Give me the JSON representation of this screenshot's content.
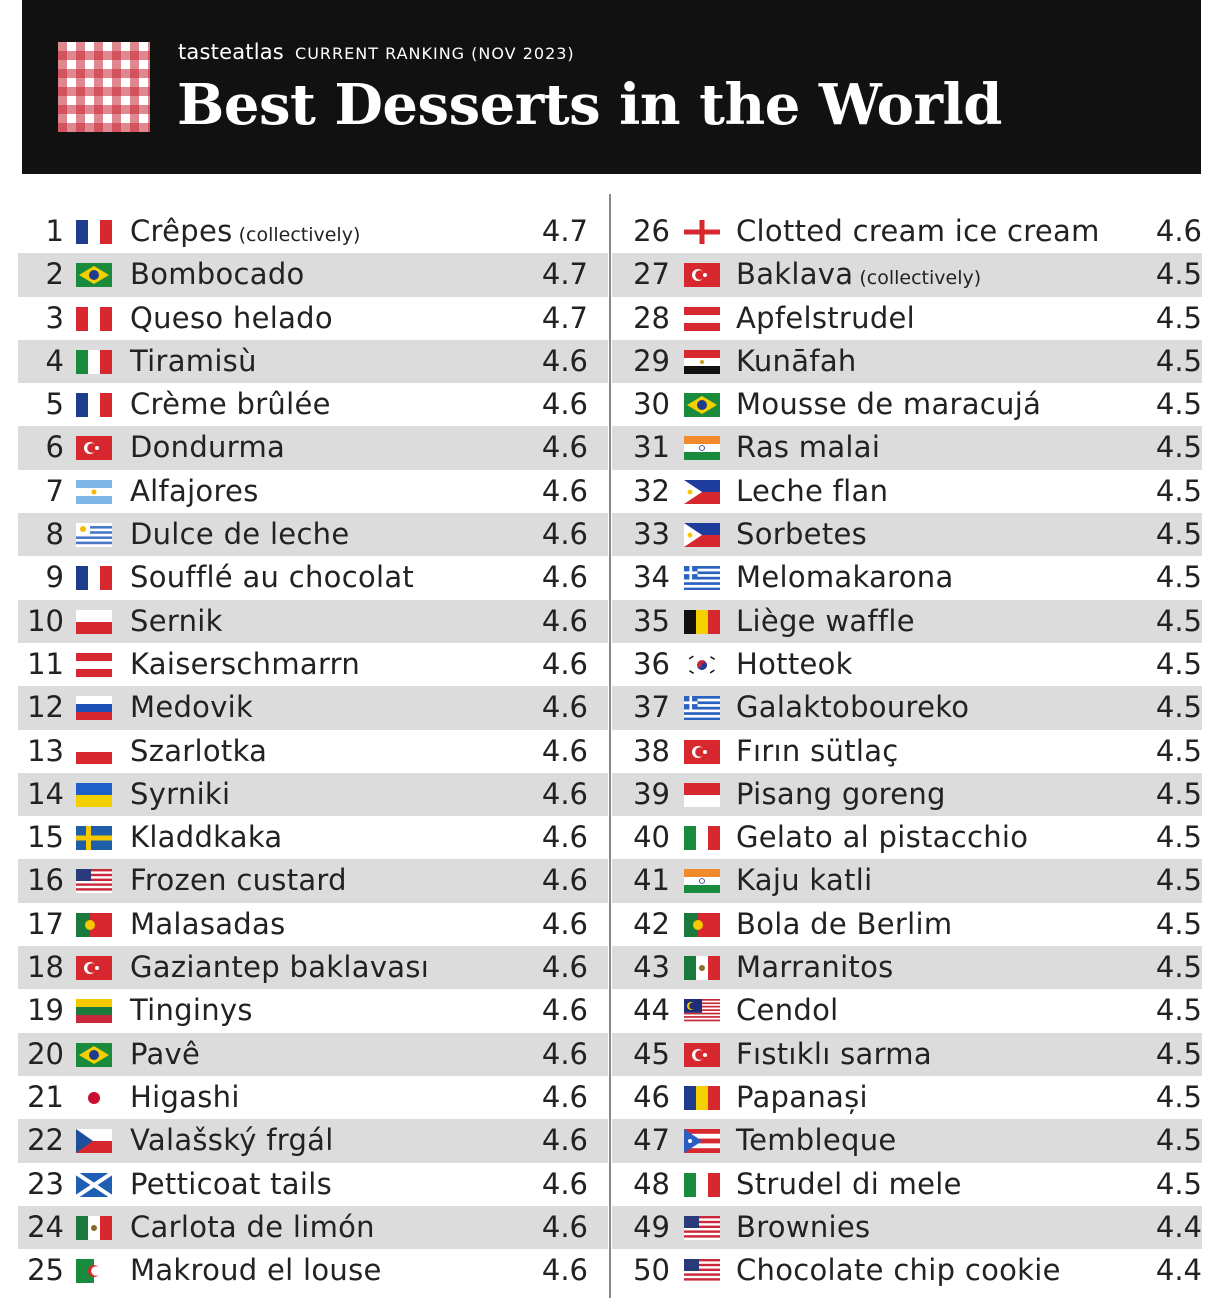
{
  "header": {
    "brand": "tasteatlas",
    "subtitle": "CURRENT RANKING (NOV 2023)",
    "title": "Best Desserts in the World"
  },
  "colors": {
    "header_bg": "#111111",
    "row_alt": "#dcdcdc",
    "logo_red": "#c62634"
  },
  "left_rows": [
    {
      "rank": "1",
      "flag": "france-flag",
      "name": "Crêpes",
      "note": "(collectively)",
      "score": "4.7"
    },
    {
      "rank": "2",
      "flag": "brazil-flag",
      "name": "Bombocado",
      "note": "",
      "score": "4.7"
    },
    {
      "rank": "3",
      "flag": "peru-flag",
      "name": "Queso helado",
      "note": "",
      "score": "4.7"
    },
    {
      "rank": "4",
      "flag": "italy-flag",
      "name": "Tiramisù",
      "note": "",
      "score": "4.6"
    },
    {
      "rank": "5",
      "flag": "france-flag",
      "name": "Crème brûlée",
      "note": "",
      "score": "4.6"
    },
    {
      "rank": "6",
      "flag": "turkey-flag",
      "name": "Dondurma",
      "note": "",
      "score": "4.6"
    },
    {
      "rank": "7",
      "flag": "argentina-flag",
      "name": "Alfajores",
      "note": "",
      "score": "4.6"
    },
    {
      "rank": "8",
      "flag": "uruguay-flag",
      "name": "Dulce de leche",
      "note": "",
      "score": "4.6"
    },
    {
      "rank": "9",
      "flag": "france-flag",
      "name": "Soufflé au chocolat",
      "note": "",
      "score": "4.6"
    },
    {
      "rank": "10",
      "flag": "poland-flag",
      "name": "Sernik",
      "note": "",
      "score": "4.6"
    },
    {
      "rank": "11",
      "flag": "austria-flag",
      "name": "Kaiserschmarrn",
      "note": "",
      "score": "4.6"
    },
    {
      "rank": "12",
      "flag": "russia-flag",
      "name": "Medovik",
      "note": "",
      "score": "4.6"
    },
    {
      "rank": "13",
      "flag": "poland-flag",
      "name": "Szarlotka",
      "note": "",
      "score": "4.6"
    },
    {
      "rank": "14",
      "flag": "ukraine-flag",
      "name": "Syrniki",
      "note": "",
      "score": "4.6"
    },
    {
      "rank": "15",
      "flag": "sweden-flag",
      "name": "Kladdkaka",
      "note": "",
      "score": "4.6"
    },
    {
      "rank": "16",
      "flag": "usa-flag",
      "name": "Frozen custard",
      "note": "",
      "score": "4.6"
    },
    {
      "rank": "17",
      "flag": "portugal-flag",
      "name": "Malasadas",
      "note": "",
      "score": "4.6"
    },
    {
      "rank": "18",
      "flag": "turkey-flag",
      "name": "Gaziantep baklavası",
      "note": "",
      "score": "4.6"
    },
    {
      "rank": "19",
      "flag": "lithuania-flag",
      "name": "Tinginys",
      "note": "",
      "score": "4.6"
    },
    {
      "rank": "20",
      "flag": "brazil-flag",
      "name": "Pavê",
      "note": "",
      "score": "4.6"
    },
    {
      "rank": "21",
      "flag": "japan-flag",
      "name": "Higashi",
      "note": "",
      "score": "4.6"
    },
    {
      "rank": "22",
      "flag": "czechia-flag",
      "name": "Valašský frgál",
      "note": "",
      "score": "4.6"
    },
    {
      "rank": "23",
      "flag": "scotland-flag",
      "name": "Petticoat tails",
      "note": "",
      "score": "4.6"
    },
    {
      "rank": "24",
      "flag": "mexico-flag",
      "name": "Carlota de limón",
      "note": "",
      "score": "4.6"
    },
    {
      "rank": "25",
      "flag": "algeria-flag",
      "name": "Makroud el louse",
      "note": "",
      "score": "4.6"
    }
  ],
  "right_rows": [
    {
      "rank": "26",
      "flag": "england-flag",
      "name": "Clotted cream ice cream",
      "note": "",
      "score": "4.6"
    },
    {
      "rank": "27",
      "flag": "turkey-flag",
      "name": "Baklava",
      "note": "(collectively)",
      "score": "4.5"
    },
    {
      "rank": "28",
      "flag": "austria-flag",
      "name": "Apfelstrudel",
      "note": "",
      "score": "4.5"
    },
    {
      "rank": "29",
      "flag": "egypt-flag",
      "name": "Kunāfah",
      "note": "",
      "score": "4.5"
    },
    {
      "rank": "30",
      "flag": "brazil-flag",
      "name": "Mousse de maracujá",
      "note": "",
      "score": "4.5"
    },
    {
      "rank": "31",
      "flag": "india-flag",
      "name": "Ras malai",
      "note": "",
      "score": "4.5"
    },
    {
      "rank": "32",
      "flag": "philippines-flag",
      "name": "Leche flan",
      "note": "",
      "score": "4.5"
    },
    {
      "rank": "33",
      "flag": "philippines-flag",
      "name": "Sorbetes",
      "note": "",
      "score": "4.5"
    },
    {
      "rank": "34",
      "flag": "greece-flag",
      "name": "Melomakarona",
      "note": "",
      "score": "4.5"
    },
    {
      "rank": "35",
      "flag": "belgium-flag",
      "name": "Liège waffle",
      "note": "",
      "score": "4.5"
    },
    {
      "rank": "36",
      "flag": "south-korea-flag",
      "name": "Hotteok",
      "note": "",
      "score": "4.5"
    },
    {
      "rank": "37",
      "flag": "greece-flag",
      "name": "Galaktoboureko",
      "note": "",
      "score": "4.5"
    },
    {
      "rank": "38",
      "flag": "turkey-flag",
      "name": "Fırın sütlaç",
      "note": "",
      "score": "4.5"
    },
    {
      "rank": "39",
      "flag": "indonesia-flag",
      "name": "Pisang goreng",
      "note": "",
      "score": "4.5"
    },
    {
      "rank": "40",
      "flag": "italy-flag",
      "name": "Gelato al pistacchio",
      "note": "",
      "score": "4.5"
    },
    {
      "rank": "41",
      "flag": "india-flag",
      "name": "Kaju katli",
      "note": "",
      "score": "4.5"
    },
    {
      "rank": "42",
      "flag": "portugal-flag",
      "name": "Bola de Berlim",
      "note": "",
      "score": "4.5"
    },
    {
      "rank": "43",
      "flag": "mexico-flag",
      "name": "Marranitos",
      "note": "",
      "score": "4.5"
    },
    {
      "rank": "44",
      "flag": "malaysia-flag",
      "name": "Cendol",
      "note": "",
      "score": "4.5"
    },
    {
      "rank": "45",
      "flag": "turkey-flag",
      "name": "Fıstıklı sarma",
      "note": "",
      "score": "4.5"
    },
    {
      "rank": "46",
      "flag": "romania-flag",
      "name": "Papanași",
      "note": "",
      "score": "4.5"
    },
    {
      "rank": "47",
      "flag": "puerto-rico-flag",
      "name": "Tembleque",
      "note": "",
      "score": "4.5"
    },
    {
      "rank": "48",
      "flag": "italy-flag",
      "name": "Strudel di mele",
      "note": "",
      "score": "4.5"
    },
    {
      "rank": "49",
      "flag": "usa-flag",
      "name": "Brownies",
      "note": "",
      "score": "4.4"
    },
    {
      "rank": "50",
      "flag": "usa-flag",
      "name": "Chocolate chip cookie",
      "note": "",
      "score": "4.4"
    }
  ]
}
